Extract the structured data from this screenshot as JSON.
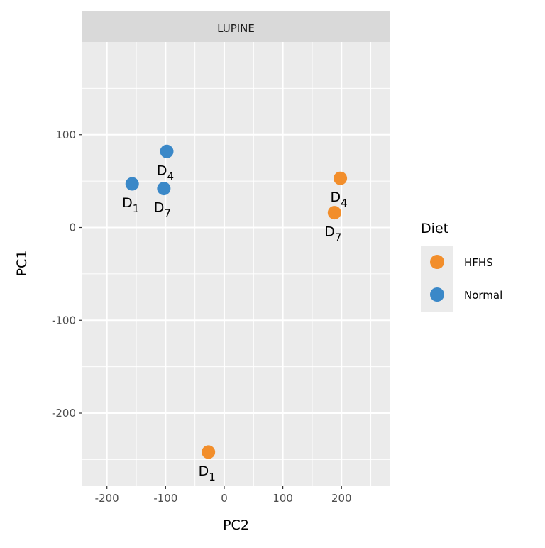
{
  "chart_data": {
    "type": "scatter",
    "facet_label": "LUPINE",
    "xlabel": "PC2",
    "ylabel": "PC1",
    "xlim": [
      -242,
      282
    ],
    "ylim": [
      -278,
      200
    ],
    "x_ticks": [
      -200,
      -100,
      0,
      100,
      200
    ],
    "y_ticks": [
      100,
      0,
      -100,
      -200
    ],
    "x_tick_labels": [
      "-200",
      "-100",
      "0",
      "100",
      "200"
    ],
    "y_tick_labels": [
      "100",
      "0",
      "-100",
      "-200"
    ],
    "grid": true,
    "legend": {
      "title": "Diet",
      "placement": "right",
      "entries": [
        {
          "label": "HFHS",
          "color": "#F28E2B"
        },
        {
          "label": "Normal",
          "color": "#3A88C8"
        }
      ]
    },
    "series": [
      {
        "name": "HFHS",
        "color": "#F28E2B",
        "points": [
          {
            "x": -27,
            "y": -242,
            "base": "D",
            "sub": "1",
            "label_pos": "below"
          },
          {
            "x": 198,
            "y": 53,
            "base": "D",
            "sub": "4",
            "label_pos": "below"
          },
          {
            "x": 188,
            "y": 16,
            "base": "D",
            "sub": "7",
            "label_pos": "below"
          }
        ]
      },
      {
        "name": "Normal",
        "color": "#3A88C8",
        "points": [
          {
            "x": -157,
            "y": 47,
            "base": "D",
            "sub": "1",
            "label_pos": "below"
          },
          {
            "x": -98,
            "y": 82,
            "base": "D",
            "sub": "4",
            "label_pos": "below"
          },
          {
            "x": -103,
            "y": 42,
            "base": "D",
            "sub": "7",
            "label_pos": "below"
          }
        ]
      }
    ]
  }
}
